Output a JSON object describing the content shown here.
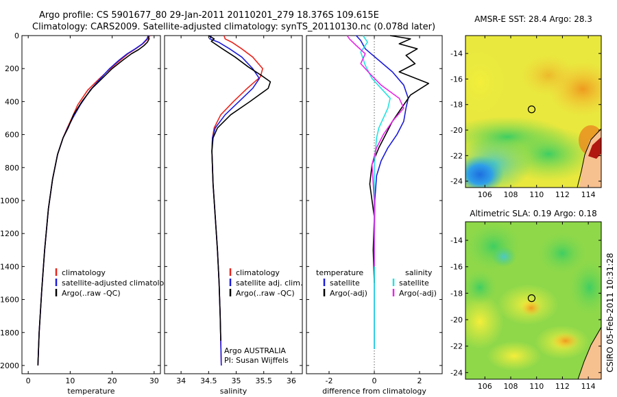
{
  "header": {
    "line1": "Argo profile: CS 5901677_80 29-Jan-2011 20110201_279 18.376S 109.615E",
    "line2": "Climatology: CARS2009. Satellite-adjusted climatology: synTS_20110130.nc (0.078d later)"
  },
  "side_stamp": "CSIRO 05-Feb-2011 10:31:28",
  "colors": {
    "climatology": "#e8241c",
    "satellite": "#1a1adb",
    "argo": "#000000",
    "satellite_diff": "#22e3e3",
    "argo_adj_diff": "#e826e8"
  },
  "chart_data": [
    {
      "type": "line",
      "id": "temperature",
      "xlabel": "temperature",
      "ylabel": "",
      "xlim": [
        -1.5,
        31.5
      ],
      "ylim": [
        2050,
        0
      ],
      "x_ticks": [
        0,
        10,
        20,
        30
      ],
      "y_ticks": [
        0,
        200,
        400,
        600,
        800,
        1000,
        1200,
        1400,
        1600,
        1800,
        2000
      ],
      "legend": {
        "placement": "lower-right",
        "entries": [
          "climatology",
          "satellite-adjusted climatology",
          "Argo(..raw -QC)"
        ]
      },
      "series": [
        {
          "name": "climatology",
          "color": "#e8241c",
          "x": [
            29.0,
            28.5,
            27.3,
            25.6,
            23.8,
            21.9,
            19.6,
            17.0,
            14.2,
            11.8,
            10.4,
            9.3,
            8.3,
            7.0,
            5.8,
            4.8,
            3.9,
            3.2,
            2.6,
            2.3
          ],
          "y": [
            0,
            20,
            50,
            80,
            110,
            150,
            200,
            260,
            330,
            420,
            500,
            560,
            620,
            720,
            870,
            1050,
            1300,
            1550,
            1800,
            2000
          ]
        },
        {
          "name": "satellite-adjusted climatology",
          "color": "#1a1adb",
          "x": [
            28.6,
            28.3,
            27.2,
            25.5,
            23.6,
            21.6,
            19.4,
            17.2,
            14.8,
            12.4,
            10.6,
            9.4,
            8.3,
            7.0,
            5.8,
            4.8,
            3.9,
            3.2,
            2.6,
            2.3
          ],
          "y": [
            0,
            20,
            50,
            80,
            110,
            150,
            200,
            260,
            330,
            420,
            500,
            560,
            620,
            720,
            870,
            1050,
            1300,
            1550,
            1800,
            2000
          ]
        },
        {
          "name": "Argo(..raw -QC)",
          "color": "#000000",
          "x": [
            28.6,
            28.8,
            28.4,
            27.6,
            26.3,
            24.6,
            22.5,
            20.0,
            17.6,
            15.2,
            12.8,
            10.8,
            9.5,
            8.3,
            7.0,
            5.8,
            4.8,
            3.9,
            3.2,
            2.6,
            2.3
          ],
          "y": [
            5,
            20,
            40,
            60,
            85,
            110,
            150,
            200,
            260,
            320,
            400,
            480,
            560,
            620,
            720,
            870,
            1050,
            1300,
            1550,
            1800,
            2000
          ]
        }
      ]
    },
    {
      "type": "line",
      "id": "salinity",
      "xlabel": "salinity",
      "ylabel": "",
      "xlim": [
        33.7,
        36.2
      ],
      "ylim": [
        2050,
        0
      ],
      "x_ticks": [
        34,
        34.5,
        35,
        35.5,
        36
      ],
      "annotation": [
        "Argo AUSTRALIA",
        "PI: Susan Wijffels"
      ],
      "legend": {
        "placement": "lower-right",
        "entries": [
          "climatology",
          "satellite adj. clim.",
          "Argo(..raw -QC)"
        ]
      },
      "series": [
        {
          "name": "climatology",
          "color": "#e8241c",
          "x": [
            34.78,
            34.8,
            34.92,
            35.1,
            35.3,
            35.48,
            35.44,
            35.2,
            34.95,
            34.72,
            34.6,
            34.57,
            34.56,
            34.58,
            34.62,
            34.66,
            34.69,
            34.71,
            34.72,
            34.73
          ],
          "y": [
            0,
            20,
            40,
            80,
            130,
            200,
            250,
            320,
            400,
            480,
            560,
            620,
            700,
            900,
            1100,
            1300,
            1500,
            1700,
            1850,
            2000
          ]
        },
        {
          "name": "satellite adj. clim.",
          "color": "#1a1adb",
          "x": [
            34.55,
            34.52,
            34.68,
            34.88,
            35.1,
            35.3,
            35.42,
            35.3,
            35.05,
            34.8,
            34.62,
            34.57,
            34.56,
            34.58,
            34.62,
            34.66,
            34.69,
            34.71,
            34.72,
            34.73
          ],
          "y": [
            0,
            20,
            40,
            80,
            130,
            200,
            260,
            320,
            400,
            480,
            560,
            620,
            700,
            900,
            1100,
            1300,
            1500,
            1700,
            1850,
            2000
          ]
        },
        {
          "name": "Argo(..raw -QC)",
          "color": "#000000",
          "x": [
            34.5,
            34.6,
            34.55,
            34.75,
            34.98,
            35.22,
            35.45,
            35.62,
            35.58,
            35.25,
            34.9,
            34.66,
            34.58,
            34.56,
            34.58,
            34.62,
            34.66,
            34.69,
            34.71,
            34.72
          ],
          "y": [
            0,
            20,
            35,
            80,
            130,
            190,
            240,
            280,
            320,
            400,
            480,
            560,
            620,
            700,
            900,
            1100,
            1300,
            1500,
            1700,
            1850
          ]
        }
      ]
    },
    {
      "type": "line",
      "id": "difference",
      "xlabel": "difference from climatology",
      "ylabel": "",
      "xlim": [
        -3,
        3
      ],
      "ylim": [
        2050,
        0
      ],
      "x_ticks": [
        -2,
        0,
        2
      ],
      "zero_line": "dotted",
      "legend": {
        "placement": "lower-right",
        "headers": [
          "temperature",
          "salinity"
        ],
        "entries": [
          "satellite",
          "Argo(-adj)",
          "satellite",
          "Argo(-adj)"
        ]
      },
      "series": [
        {
          "name": "satellite",
          "group": "temperature",
          "color": "#1a1adb",
          "x": [
            -0.8,
            -0.6,
            -0.4,
            0.2,
            0.8,
            1.3,
            1.5,
            1.4,
            1.3,
            1.0,
            0.6,
            0.3,
            0.1,
            0.02,
            0.0,
            0.0,
            0.0
          ],
          "y": [
            0,
            30,
            80,
            150,
            220,
            300,
            380,
            440,
            520,
            600,
            680,
            760,
            850,
            1000,
            1300,
            1600,
            1900
          ]
        },
        {
          "name": "Argo(-adj)",
          "group": "temperature",
          "color": "#000000",
          "x": [
            0.7,
            1.6,
            1.1,
            1.9,
            1.4,
            1.8,
            1.1,
            2.4,
            1.6,
            1.2,
            0.8,
            0.5,
            0.2,
            -0.1,
            -0.2,
            -0.1,
            0.0,
            -0.05,
            0.0
          ],
          "y": [
            0,
            20,
            50,
            80,
            120,
            170,
            220,
            290,
            360,
            440,
            520,
            600,
            680,
            780,
            900,
            1000,
            1100,
            1300,
            1500
          ]
        },
        {
          "name": "satellite",
          "group": "salinity",
          "color": "#22e3e3",
          "x": [
            -0.5,
            -0.3,
            -0.6,
            -0.4,
            -0.1,
            0.3,
            0.7,
            0.6,
            0.4,
            0.2,
            0.1,
            0.05,
            0.0,
            0.0,
            0.0,
            0.0,
            0.0
          ],
          "y": [
            0,
            40,
            100,
            180,
            260,
            320,
            380,
            440,
            500,
            560,
            620,
            700,
            800,
            1000,
            1300,
            1600,
            1900
          ]
        },
        {
          "name": "Argo(-adj)",
          "group": "salinity",
          "color": "#e826e8",
          "x": [
            -1.2,
            -1.1,
            -0.8,
            -0.4,
            -0.6,
            -0.2,
            0.3,
            1.1,
            1.3,
            0.8,
            0.4,
            0.1,
            -0.1,
            -0.05,
            0.0,
            0.0,
            0.0
          ],
          "y": [
            0,
            20,
            60,
            110,
            170,
            230,
            300,
            380,
            440,
            520,
            600,
            680,
            780,
            900,
            1000,
            1200,
            1400
          ]
        }
      ]
    },
    {
      "type": "heatmap",
      "id": "sst-map",
      "title": "AMSR-E SST: 28.4  Argo: 28.3",
      "xlim": [
        104.5,
        115
      ],
      "ylim": [
        -24.5,
        -12.6
      ],
      "x_ticks": [
        106,
        108,
        110,
        112,
        114
      ],
      "y_ticks": [
        -14,
        -16,
        -18,
        -20,
        -22,
        -24
      ],
      "marker": {
        "x": 109.615,
        "y": -18.376
      }
    },
    {
      "type": "heatmap",
      "id": "sla-map",
      "title": "Altimetric SLA: 0.19  Argo: 0.18",
      "xlim": [
        104.5,
        115
      ],
      "ylim": [
        -24.5,
        -12.6
      ],
      "x_ticks": [
        106,
        108,
        110,
        112,
        114
      ],
      "y_ticks": [
        -14,
        -16,
        -18,
        -20,
        -22,
        -24
      ],
      "marker": {
        "x": 109.615,
        "y": -18.376
      }
    }
  ]
}
